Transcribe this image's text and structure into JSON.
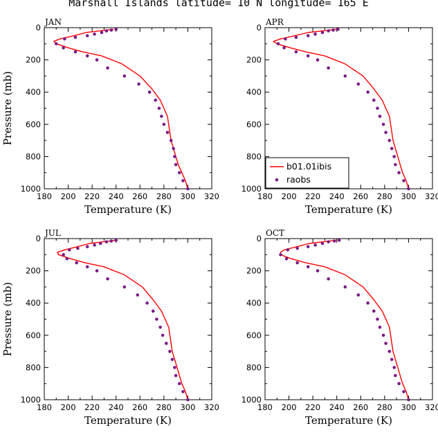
{
  "figure": {
    "title": "Marshall Islands  latitude= 10 N longitude= 165 E"
  },
  "legend": {
    "model_label": "b01.01ibis",
    "obs_label": "raobs",
    "placement": "lower-left of APR panel"
  },
  "colors": {
    "model": "#ff0000",
    "obs": "#7a1a86",
    "axis": "#000000"
  },
  "chart_data": [
    {
      "type": "line",
      "panel_label": "JAN",
      "xlabel": "Temperature (K)",
      "ylabel": "Pressure (mb)",
      "xlim": [
        180,
        320
      ],
      "ylim": [
        1000,
        0
      ],
      "xticks": [
        "180",
        "200",
        "220",
        "240",
        "260",
        "280",
        "300",
        "320"
      ],
      "yticks": [
        "0",
        "200",
        "400",
        "600",
        "800",
        "1000"
      ],
      "series": [
        {
          "name": "b01.01ibis",
          "kind": "line",
          "x": [
            238,
            226,
            215,
            205,
            193,
            188,
            190,
            200,
            212,
            228,
            245,
            260,
            270,
            277,
            283,
            286,
            288,
            290,
            292,
            295,
            298,
            300
          ],
          "y": [
            10,
            20,
            30,
            50,
            70,
            85,
            100,
            125,
            150,
            175,
            225,
            300,
            380,
            450,
            550,
            700,
            750,
            800,
            850,
            900,
            950,
            1000
          ]
        },
        {
          "name": "raobs",
          "kind": "scatter",
          "x": [
            240,
            236,
            232,
            228,
            222,
            216,
            206,
            197,
            190,
            196,
            206,
            216,
            224,
            233,
            247,
            259,
            268,
            273,
            276,
            278,
            280,
            283,
            286,
            288,
            289,
            290,
            293,
            296,
            300
          ],
          "y": [
            10,
            15,
            20,
            30,
            40,
            50,
            60,
            70,
            100,
            125,
            150,
            175,
            200,
            250,
            300,
            350,
            400,
            450,
            500,
            550,
            600,
            650,
            700,
            750,
            800,
            850,
            900,
            950,
            1000
          ]
        }
      ]
    },
    {
      "type": "line",
      "panel_label": "APR",
      "xlabel": "Temperature (K)",
      "ylabel": "",
      "xlim": [
        180,
        320
      ],
      "ylim": [
        1000,
        0
      ],
      "xticks": [
        "180",
        "200",
        "220",
        "240",
        "260",
        "280",
        "300",
        "320"
      ],
      "yticks": [
        "0",
        "200",
        "400",
        "600",
        "800",
        "1000"
      ],
      "series": [
        {
          "name": "b01.01ibis",
          "kind": "line",
          "x": [
            240,
            228,
            216,
            205,
            193,
            187,
            190,
            201,
            214,
            230,
            247,
            262,
            271,
            278,
            284,
            287,
            289,
            291,
            293,
            295,
            298,
            300
          ],
          "y": [
            10,
            20,
            30,
            50,
            70,
            85,
            100,
            125,
            150,
            175,
            225,
            300,
            380,
            450,
            550,
            700,
            750,
            800,
            850,
            900,
            950,
            1000
          ]
        },
        {
          "name": "raobs",
          "kind": "scatter",
          "x": [
            241,
            237,
            233,
            228,
            222,
            216,
            206,
            197,
            191,
            196,
            206,
            216,
            224,
            233,
            247,
            258,
            266,
            271,
            274,
            276,
            279,
            281,
            284,
            286,
            288,
            289,
            292,
            296,
            300
          ],
          "y": [
            10,
            15,
            20,
            30,
            40,
            50,
            60,
            70,
            100,
            125,
            150,
            175,
            200,
            250,
            300,
            350,
            400,
            450,
            500,
            550,
            600,
            650,
            700,
            750,
            800,
            850,
            900,
            950,
            1000
          ]
        }
      ]
    },
    {
      "type": "line",
      "panel_label": "JUL",
      "xlabel": "Temperature (K)",
      "ylabel": "Pressure (mb)",
      "xlim": [
        180,
        320
      ],
      "ylim": [
        1000,
        0
      ],
      "xticks": [
        "180",
        "200",
        "220",
        "240",
        "260",
        "280",
        "300",
        "320"
      ],
      "yticks": [
        "0",
        "200",
        "400",
        "600",
        "800",
        "1000"
      ],
      "series": [
        {
          "name": "b01.01ibis",
          "kind": "line",
          "x": [
            240,
            229,
            218,
            208,
            197,
            191,
            192,
            202,
            214,
            230,
            247,
            262,
            271,
            278,
            284,
            287,
            289,
            291,
            293,
            295,
            298,
            300
          ],
          "y": [
            10,
            20,
            30,
            50,
            70,
            85,
            100,
            125,
            150,
            175,
            225,
            300,
            380,
            450,
            550,
            700,
            750,
            800,
            850,
            900,
            950,
            1000
          ]
        },
        {
          "name": "raobs",
          "kind": "scatter",
          "x": [
            240,
            236,
            232,
            227,
            222,
            216,
            208,
            201,
            196,
            199,
            207,
            216,
            224,
            233,
            247,
            258,
            266,
            271,
            274,
            277,
            279,
            282,
            285,
            287,
            289,
            290,
            293,
            296,
            300
          ],
          "y": [
            10,
            15,
            20,
            30,
            40,
            50,
            60,
            70,
            100,
            125,
            150,
            175,
            200,
            250,
            300,
            350,
            400,
            450,
            500,
            550,
            600,
            650,
            700,
            750,
            800,
            850,
            900,
            950,
            1000
          ]
        }
      ]
    },
    {
      "type": "line",
      "panel_label": "OCT",
      "xlabel": "Temperature (K)",
      "ylabel": "",
      "xlim": [
        180,
        320
      ],
      "ylim": [
        1000,
        0
      ],
      "xticks": [
        "180",
        "200",
        "220",
        "240",
        "260",
        "280",
        "300",
        "320"
      ],
      "yticks": [
        "0",
        "200",
        "400",
        "600",
        "800",
        "1000"
      ],
      "series": [
        {
          "name": "b01.01ibis",
          "kind": "line",
          "x": [
            240,
            228,
            217,
            207,
            196,
            193,
            193,
            202,
            214,
            230,
            247,
            262,
            271,
            278,
            284,
            287,
            289,
            291,
            293,
            295,
            298,
            300
          ],
          "y": [
            10,
            20,
            30,
            50,
            70,
            85,
            100,
            125,
            150,
            175,
            225,
            300,
            380,
            450,
            550,
            700,
            750,
            800,
            850,
            900,
            950,
            1000
          ]
        },
        {
          "name": "raobs",
          "kind": "scatter",
          "x": [
            242,
            238,
            233,
            228,
            222,
            216,
            207,
            199,
            193,
            198,
            207,
            216,
            224,
            233,
            247,
            258,
            266,
            271,
            274,
            276,
            279,
            281,
            284,
            286,
            288,
            289,
            292,
            296,
            300
          ],
          "y": [
            10,
            15,
            20,
            30,
            40,
            50,
            60,
            70,
            100,
            125,
            150,
            175,
            200,
            250,
            300,
            350,
            400,
            450,
            500,
            550,
            600,
            650,
            700,
            750,
            800,
            850,
            900,
            950,
            1000
          ]
        }
      ]
    }
  ]
}
